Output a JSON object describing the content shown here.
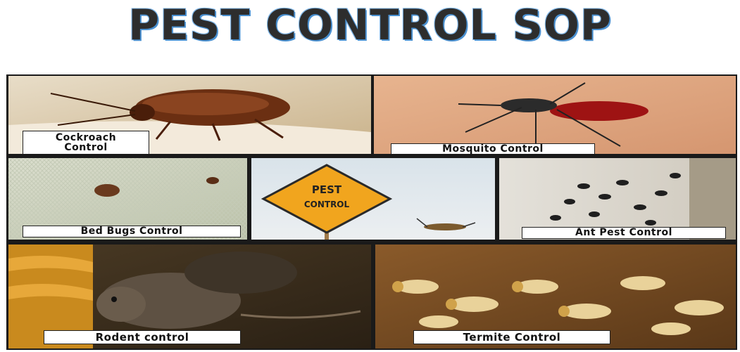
{
  "title": "PEST CONTROL SOP",
  "tiles": {
    "cockroach": {
      "line1": "Cockroach",
      "line2": "Control"
    },
    "mosquito": {
      "label": "Mosquito Control"
    },
    "bedbugs": {
      "label": "Bed Bugs Control"
    },
    "sign": {
      "line1": "PEST",
      "line2": "CONTROL"
    },
    "ant": {
      "label": "Ant Pest Control"
    },
    "rodent": {
      "label": "Rodent control"
    },
    "termite": {
      "label": "Termite Control"
    }
  }
}
